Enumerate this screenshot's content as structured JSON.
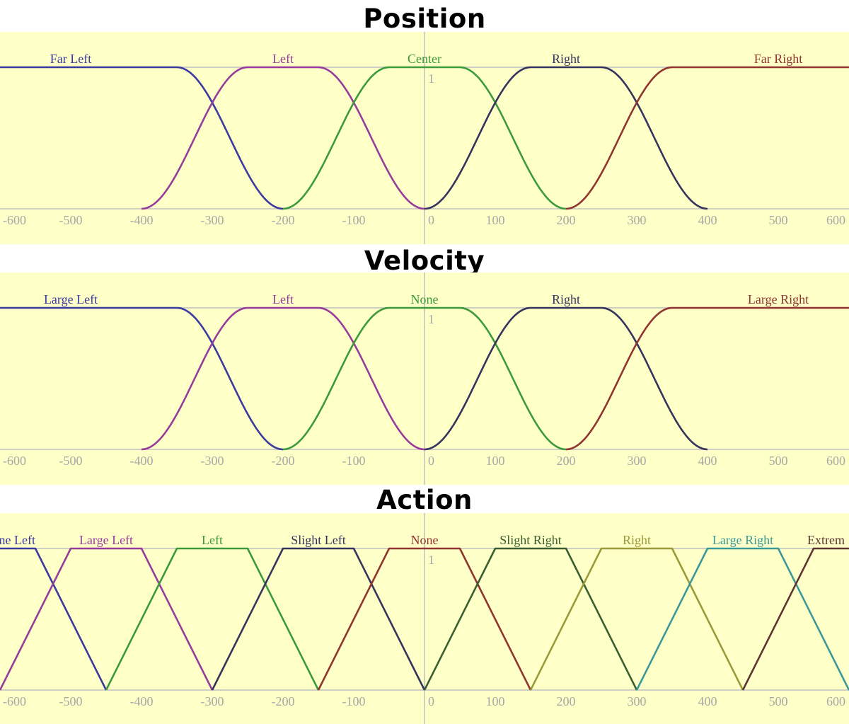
{
  "chart_data": [
    {
      "type": "line",
      "title": "Position",
      "xlabel": "",
      "ylabel": "",
      "xlim": [
        -600,
        600
      ],
      "ylim": [
        0,
        1
      ],
      "x_ticks": [
        -600,
        -500,
        -400,
        -300,
        -200,
        -100,
        0,
        100,
        200,
        300,
        400,
        500,
        600
      ],
      "y_tick_label": "1",
      "grid": "axes only",
      "background": "#ffffc8",
      "series": [
        {
          "name": "Far Left",
          "color": "#3a3aa0",
          "points": [
            [
              -600,
              1
            ],
            [
              -350,
              1
            ],
            [
              -200,
              0
            ]
          ]
        },
        {
          "name": "Left",
          "color": "#963c9c",
          "points": [
            [
              -400,
              0
            ],
            [
              -250,
              1
            ],
            [
              -150,
              1
            ],
            [
              0,
              0
            ]
          ]
        },
        {
          "name": "Center",
          "color": "#3c9a3c",
          "points": [
            [
              -200,
              0
            ],
            [
              -50,
              1
            ],
            [
              50,
              1
            ],
            [
              200,
              0
            ]
          ]
        },
        {
          "name": "Right",
          "color": "#34345e",
          "points": [
            [
              0,
              0
            ],
            [
              150,
              1
            ],
            [
              250,
              1
            ],
            [
              400,
              0
            ]
          ]
        },
        {
          "name": "Far Right",
          "color": "#8f3432",
          "points": [
            [
              200,
              0
            ],
            [
              350,
              1
            ],
            [
              600,
              1
            ]
          ]
        }
      ]
    },
    {
      "type": "line",
      "title": "Velocity",
      "xlabel": "",
      "ylabel": "",
      "xlim": [
        -600,
        600
      ],
      "ylim": [
        0,
        1
      ],
      "x_ticks": [
        -600,
        -500,
        -400,
        -300,
        -200,
        -100,
        0,
        100,
        200,
        300,
        400,
        500,
        600
      ],
      "y_tick_label": "1",
      "grid": "axes only",
      "background": "#ffffc8",
      "series": [
        {
          "name": "Large Left",
          "color": "#3a3aa0",
          "points": [
            [
              -600,
              1
            ],
            [
              -350,
              1
            ],
            [
              -200,
              0
            ]
          ]
        },
        {
          "name": "Left",
          "color": "#963c9c",
          "points": [
            [
              -400,
              0
            ],
            [
              -250,
              1
            ],
            [
              -150,
              1
            ],
            [
              0,
              0
            ]
          ]
        },
        {
          "name": "None",
          "color": "#3c9a3c",
          "points": [
            [
              -200,
              0
            ],
            [
              -50,
              1
            ],
            [
              50,
              1
            ],
            [
              200,
              0
            ]
          ]
        },
        {
          "name": "Right",
          "color": "#34345e",
          "points": [
            [
              0,
              0
            ],
            [
              150,
              1
            ],
            [
              250,
              1
            ],
            [
              400,
              0
            ]
          ]
        },
        {
          "name": "Large Right",
          "color": "#8f3432",
          "points": [
            [
              200,
              0
            ],
            [
              350,
              1
            ],
            [
              600,
              1
            ]
          ]
        }
      ]
    },
    {
      "type": "line",
      "title": "Action",
      "xlabel": "",
      "ylabel": "",
      "xlim": [
        -600,
        600
      ],
      "ylim": [
        0,
        1
      ],
      "x_ticks": [
        -600,
        -500,
        -400,
        -300,
        -200,
        -100,
        0,
        100,
        200,
        300,
        400,
        500,
        600
      ],
      "y_tick_label": "1",
      "grid": "axes only",
      "background": "#ffffc8",
      "series": [
        {
          "name": "ne Left",
          "color": "#3a3aa0",
          "points": [
            [
              -600,
              1
            ],
            [
              -550,
              1
            ],
            [
              -450,
              0
            ]
          ]
        },
        {
          "name": "Large Left",
          "color": "#963c9c",
          "points": [
            [
              -600,
              0
            ],
            [
              -500,
              1
            ],
            [
              -400,
              1
            ],
            [
              -300,
              0
            ]
          ]
        },
        {
          "name": "Left",
          "color": "#3c9a3c",
          "points": [
            [
              -450,
              0
            ],
            [
              -350,
              1
            ],
            [
              -250,
              1
            ],
            [
              -150,
              0
            ]
          ]
        },
        {
          "name": "Slight Left",
          "color": "#34345e",
          "points": [
            [
              -300,
              0
            ],
            [
              -200,
              1
            ],
            [
              -100,
              1
            ],
            [
              0,
              0
            ]
          ]
        },
        {
          "name": "None",
          "color": "#8f3432",
          "points": [
            [
              -150,
              0
            ],
            [
              -50,
              1
            ],
            [
              50,
              1
            ],
            [
              150,
              0
            ]
          ]
        },
        {
          "name": "Slight Right",
          "color": "#3a5e34",
          "points": [
            [
              0,
              0
            ],
            [
              100,
              1
            ],
            [
              200,
              1
            ],
            [
              300,
              0
            ]
          ]
        },
        {
          "name": "Right",
          "color": "#9a9a3a",
          "points": [
            [
              150,
              0
            ],
            [
              250,
              1
            ],
            [
              350,
              1
            ],
            [
              450,
              0
            ]
          ]
        },
        {
          "name": "Large Right",
          "color": "#3a9a9a",
          "points": [
            [
              300,
              0
            ],
            [
              400,
              1
            ],
            [
              500,
              1
            ],
            [
              600,
              0
            ]
          ]
        },
        {
          "name": "Extrem",
          "color": "#5e3434",
          "points": [
            [
              450,
              0
            ],
            [
              550,
              1
            ],
            [
              600,
              1
            ]
          ]
        }
      ]
    }
  ]
}
